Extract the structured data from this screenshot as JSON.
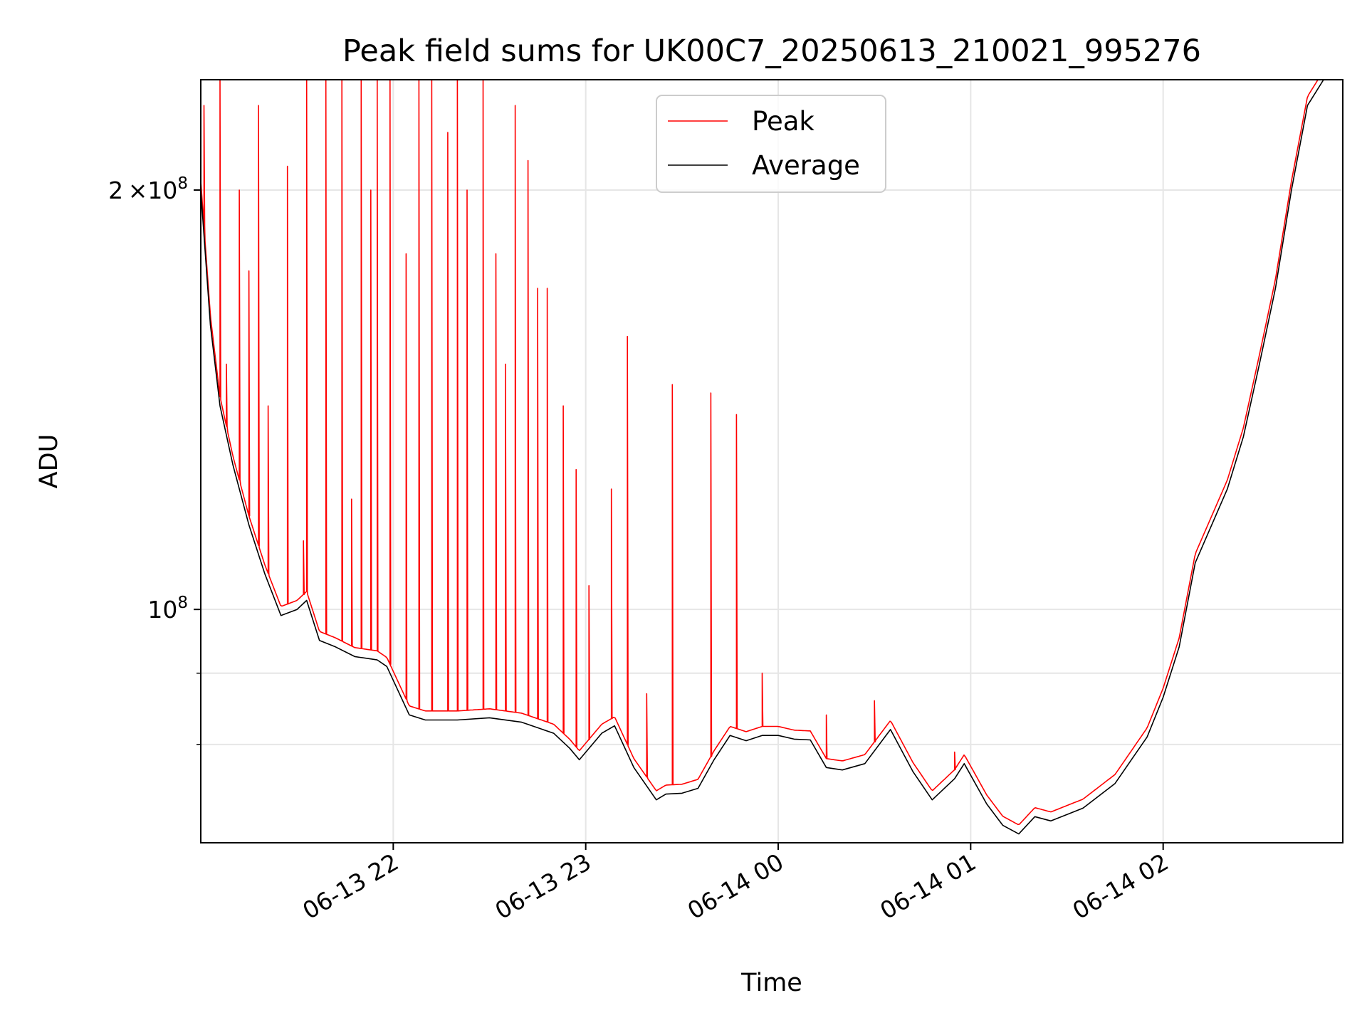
{
  "chart_data": {
    "type": "line",
    "title": "Peak field sums for UK00C7_20250613_210021_995276",
    "xlabel": "Time",
    "ylabel": "ADU",
    "x_ticks": [
      "06-13 22",
      "06-13 23",
      "06-14 00",
      "06-14 01",
      "06-14 02"
    ],
    "x_tick_values": [
      "2025-06-13 22:00",
      "2025-06-13 23:00",
      "2025-06-14 00:00",
      "2025-06-14 01:00",
      "2025-06-14 02:00"
    ],
    "xlim": [
      "2025-06-13 21:00",
      "2025-06-14 02:56"
    ],
    "y_scale": "log",
    "ylim": [
      68000000,
      240000000
    ],
    "y_ticks": [
      {
        "value": 100000000,
        "mantissa": "",
        "base": "10",
        "exp": "8"
      },
      {
        "value": 200000000,
        "mantissa": "2",
        "base": "×10",
        "exp": "8"
      }
    ],
    "y_minor_ticks": [
      80000000,
      90000000
    ],
    "grid": true,
    "legend_position": "upper center",
    "colors": {
      "peak": "#ff0000",
      "average": "#000000",
      "grid": "#e6e6e6"
    },
    "series": [
      {
        "name": "Average",
        "color": "#000000",
        "points": [
          [
            "2025-06-13 21:00",
            200000000
          ],
          [
            "2025-06-13 21:03",
            160000000
          ],
          [
            "2025-06-13 21:06",
            140000000
          ],
          [
            "2025-06-13 21:10",
            127000000
          ],
          [
            "2025-06-13 21:15",
            115000000
          ],
          [
            "2025-06-13 21:20",
            106000000
          ],
          [
            "2025-06-13 21:25",
            99000000
          ],
          [
            "2025-06-13 21:30",
            100000000
          ],
          [
            "2025-06-13 21:33",
            101500000
          ],
          [
            "2025-06-13 21:37",
            95000000
          ],
          [
            "2025-06-13 21:42",
            94000000
          ],
          [
            "2025-06-13 21:48",
            92500000
          ],
          [
            "2025-06-13 21:55",
            92000000
          ],
          [
            "2025-06-13 21:58",
            91000000
          ],
          [
            "2025-06-13 22:05",
            84000000
          ],
          [
            "2025-06-13 22:10",
            83300000
          ],
          [
            "2025-06-13 22:20",
            83300000
          ],
          [
            "2025-06-13 22:30",
            83600000
          ],
          [
            "2025-06-13 22:40",
            83000000
          ],
          [
            "2025-06-13 22:50",
            81500000
          ],
          [
            "2025-06-13 22:55",
            79500000
          ],
          [
            "2025-06-13 22:58",
            78000000
          ],
          [
            "2025-06-13 23:05",
            81500000
          ],
          [
            "2025-06-13 23:09",
            82500000
          ],
          [
            "2025-06-13 23:15",
            77000000
          ],
          [
            "2025-06-13 23:22",
            73000000
          ],
          [
            "2025-06-13 23:25",
            73700000
          ],
          [
            "2025-06-13 23:30",
            73800000
          ],
          [
            "2025-06-13 23:35",
            74400000
          ],
          [
            "2025-06-13 23:40",
            78000000
          ],
          [
            "2025-06-13 23:45",
            81200000
          ],
          [
            "2025-06-13 23:50",
            80500000
          ],
          [
            "2025-06-13 23:55",
            81200000
          ],
          [
            "2025-06-14 00:00",
            81200000
          ],
          [
            "2025-06-14 00:05",
            80700000
          ],
          [
            "2025-06-14 00:10",
            80600000
          ],
          [
            "2025-06-14 00:15",
            77000000
          ],
          [
            "2025-06-14 00:20",
            76700000
          ],
          [
            "2025-06-14 00:27",
            77500000
          ],
          [
            "2025-06-14 00:35",
            82000000
          ],
          [
            "2025-06-14 00:42",
            76500000
          ],
          [
            "2025-06-14 00:48",
            73000000
          ],
          [
            "2025-06-14 00:55",
            75600000
          ],
          [
            "2025-06-14 00:58",
            77500000
          ],
          [
            "2025-06-14 01:05",
            72500000
          ],
          [
            "2025-06-14 01:10",
            70000000
          ],
          [
            "2025-06-14 01:15",
            69000000
          ],
          [
            "2025-06-14 01:20",
            71000000
          ],
          [
            "2025-06-14 01:25",
            70500000
          ],
          [
            "2025-06-14 01:35",
            72000000
          ],
          [
            "2025-06-14 01:45",
            75000000
          ],
          [
            "2025-06-14 01:55",
            81000000
          ],
          [
            "2025-06-14 02:00",
            86500000
          ],
          [
            "2025-06-14 02:05",
            94000000
          ],
          [
            "2025-06-14 02:10",
            108000000
          ],
          [
            "2025-06-14 02:20",
            122000000
          ],
          [
            "2025-06-14 02:25",
            133000000
          ],
          [
            "2025-06-14 02:30",
            150000000
          ],
          [
            "2025-06-14 02:35",
            170000000
          ],
          [
            "2025-06-14 02:40",
            200000000
          ],
          [
            "2025-06-14 02:45",
            230000000
          ],
          [
            "2025-06-14 02:50",
            240000000
          ]
        ]
      },
      {
        "name": "Peak",
        "color": "#ff0000",
        "baseline_above_average": 1.015,
        "spikes": [
          [
            "2025-06-13 21:01",
            230000000
          ],
          [
            "2025-06-13 21:06",
            240000000
          ],
          [
            "2025-06-13 21:08",
            150000000
          ],
          [
            "2025-06-13 21:12",
            200000000
          ],
          [
            "2025-06-13 21:15",
            175000000
          ],
          [
            "2025-06-13 21:18",
            230000000
          ],
          [
            "2025-06-13 21:21",
            140000000
          ],
          [
            "2025-06-13 21:27",
            208000000
          ],
          [
            "2025-06-13 21:32",
            112000000
          ],
          [
            "2025-06-13 21:33",
            240000000
          ],
          [
            "2025-06-13 21:39",
            240000000
          ],
          [
            "2025-06-13 21:44",
            240000000
          ],
          [
            "2025-06-13 21:47",
            120000000
          ],
          [
            "2025-06-13 21:50",
            240000000
          ],
          [
            "2025-06-13 21:53",
            200000000
          ],
          [
            "2025-06-13 21:55",
            240000000
          ],
          [
            "2025-06-13 21:59",
            240000000
          ],
          [
            "2025-06-13 22:04",
            180000000
          ],
          [
            "2025-06-13 22:08",
            240000000
          ],
          [
            "2025-06-13 22:12",
            240000000
          ],
          [
            "2025-06-13 22:17",
            220000000
          ],
          [
            "2025-06-13 22:20",
            240000000
          ],
          [
            "2025-06-13 22:23",
            200000000
          ],
          [
            "2025-06-13 22:28",
            240000000
          ],
          [
            "2025-06-13 22:32",
            180000000
          ],
          [
            "2025-06-13 22:35",
            150000000
          ],
          [
            "2025-06-13 22:38",
            230000000
          ],
          [
            "2025-06-13 22:42",
            210000000
          ],
          [
            "2025-06-13 22:45",
            170000000
          ],
          [
            "2025-06-13 22:48",
            170000000
          ],
          [
            "2025-06-13 22:53",
            140000000
          ],
          [
            "2025-06-13 22:57",
            126000000
          ],
          [
            "2025-06-13 23:01",
            104000000
          ],
          [
            "2025-06-13 23:08",
            122000000
          ],
          [
            "2025-06-13 23:13",
            157000000
          ],
          [
            "2025-06-13 23:19",
            87000000
          ],
          [
            "2025-06-13 23:27",
            145000000
          ],
          [
            "2025-06-13 23:39",
            143000000
          ],
          [
            "2025-06-13 23:47",
            138000000
          ],
          [
            "2025-06-13 23:55",
            90000000
          ],
          [
            "2025-06-14 00:15",
            84000000
          ],
          [
            "2025-06-14 00:30",
            86000000
          ],
          [
            "2025-06-14 00:55",
            79000000
          ]
        ]
      }
    ]
  }
}
